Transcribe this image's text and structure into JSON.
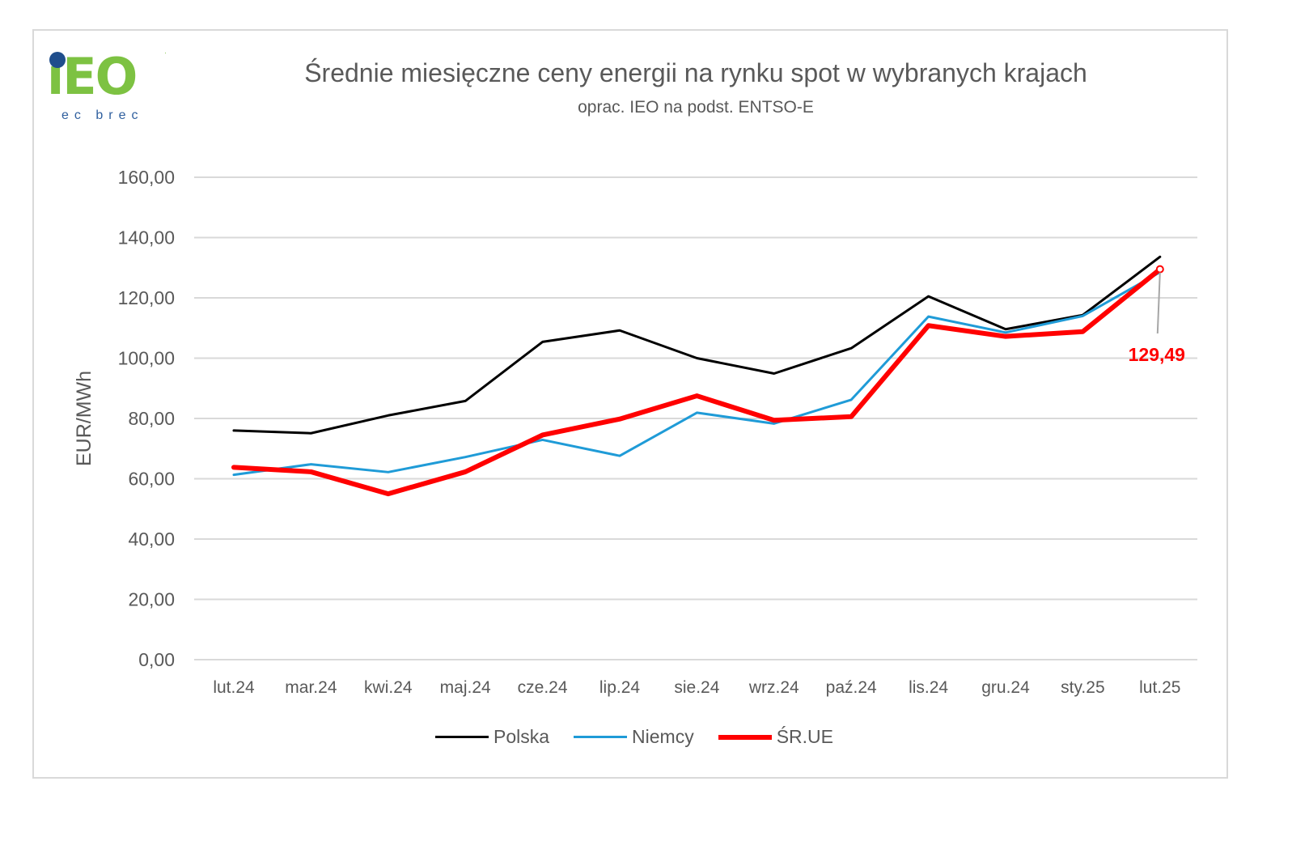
{
  "logo": {
    "mark": "iEO",
    "tagline": "ec brec",
    "mark_name": "ieo-logo"
  },
  "chart_data": {
    "type": "line",
    "title": "Średnie miesięczne ceny energii na rynku spot w wybranych krajach",
    "subtitle": "oprac. IEO na podst. ENTSO-E",
    "ylabel": "EUR/MWh",
    "xlabel": "",
    "ylim": [
      0,
      160
    ],
    "yticks": [
      "0,00",
      "20,00",
      "40,00",
      "60,00",
      "80,00",
      "100,00",
      "120,00",
      "140,00",
      "160,00"
    ],
    "ytick_values": [
      0,
      20,
      40,
      60,
      80,
      100,
      120,
      140,
      160
    ],
    "categories": [
      "lut.24",
      "mar.24",
      "kwi.24",
      "maj.24",
      "cze.24",
      "lip.24",
      "sie.24",
      "wrz.24",
      "paź.24",
      "lis.24",
      "gru.24",
      "sty.25",
      "lut.25"
    ],
    "grid": true,
    "legend_position": "bottom",
    "series": [
      {
        "name": "Polska",
        "color": "#000000",
        "values": [
          76.0,
          75.1,
          81.0,
          85.8,
          105.4,
          109.2,
          100.0,
          94.9,
          103.3,
          120.5,
          109.6,
          114.3,
          133.6
        ]
      },
      {
        "name": "Niemcy",
        "color": "#1f9bd7",
        "values": [
          61.3,
          64.8,
          62.2,
          67.2,
          72.9,
          67.6,
          81.9,
          78.3,
          86.2,
          113.8,
          108.5,
          114.0,
          128.5
        ]
      },
      {
        "name": "ŚR.UE",
        "color": "#ff0000",
        "values": [
          63.8,
          62.3,
          55.0,
          62.3,
          74.5,
          79.8,
          87.5,
          79.4,
          80.6,
          110.8,
          107.2,
          108.8,
          129.49
        ]
      }
    ],
    "annotation": {
      "label": "129,49",
      "series": "ŚR.UE",
      "category": "lut.25",
      "color": "#ff0000"
    }
  }
}
